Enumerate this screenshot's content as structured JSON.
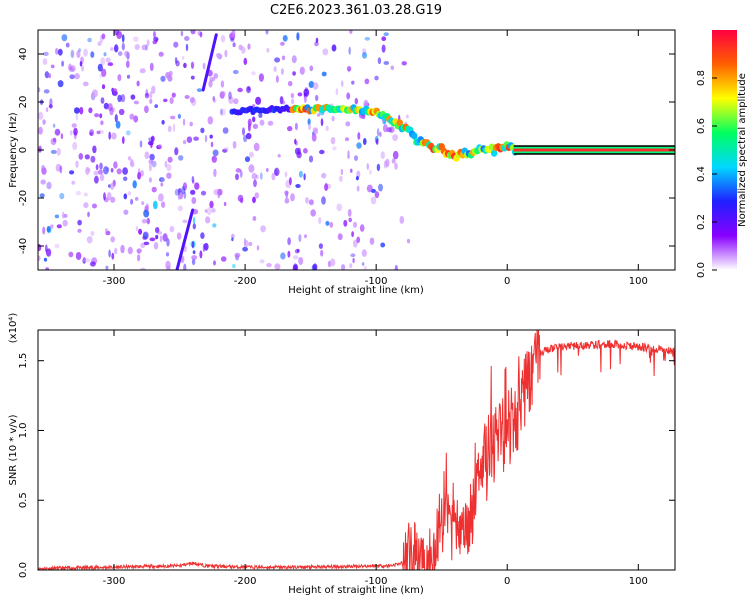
{
  "title": "C2E6.2023.361.03.28.G19",
  "colors": {
    "snr_line": "#ee3030",
    "colormap": [
      "#ffffff",
      "#8800ff",
      "#2020ff",
      "#00d8ff",
      "#00ff60",
      "#ffff00",
      "#ff6000",
      "#ff0040"
    ],
    "freq_core": "#ff2a2a"
  },
  "chart_data": [
    {
      "id": "spectrogram",
      "type": "heatmap",
      "xlabel": "Height of straight line (km)",
      "ylabel": "Frequency (Hz)",
      "xlim": [
        -358,
        128
      ],
      "ylim": [
        -50,
        50
      ],
      "xticks": [
        -300,
        -200,
        -100,
        0,
        100
      ],
      "xtick_labels": [
        "-300",
        "-200",
        "-100",
        "0",
        "100"
      ],
      "yticks": [
        -40,
        -20,
        0,
        20,
        40
      ],
      "ytick_labels": [
        "-40",
        "-20",
        "0",
        "20",
        "40"
      ],
      "colorbar": {
        "label": "Normalized spectral amplitude",
        "range": [
          0,
          1
        ],
        "ticks": [
          0.0,
          0.2,
          0.4,
          0.6,
          0.8
        ],
        "tick_labels": [
          "0.0",
          "0.2",
          "0.4",
          "0.6",
          "0.8"
        ]
      },
      "ridge": {
        "x": [
          -210,
          -180,
          -160,
          -140,
          -120,
          -100,
          -90,
          -80,
          -70,
          -60,
          -50,
          -40,
          -30,
          -20,
          -10,
          0,
          10,
          128
        ],
        "y": [
          16,
          17,
          17,
          17,
          17,
          16,
          13,
          10,
          5,
          2,
          0,
          -3,
          -1,
          0,
          0,
          1,
          0,
          0
        ]
      },
      "diagonal_streaks": [
        {
          "x": [
            -252,
            -240
          ],
          "y": [
            -50,
            -25
          ]
        },
        {
          "x": [
            -232,
            -222
          ],
          "y": [
            25,
            48
          ]
        }
      ]
    },
    {
      "id": "snr",
      "type": "line",
      "xlabel": "Height of straight line (km)",
      "ylabel": "SNR (10 * v/v)",
      "multiplier": "(x10⁴)",
      "xlim": [
        -358,
        128
      ],
      "ylim": [
        0,
        1.72
      ],
      "xticks": [
        -300,
        -200,
        -100,
        0,
        100
      ],
      "xtick_labels": [
        "-300",
        "-200",
        "-100",
        "0",
        "100"
      ],
      "yticks": [
        0,
        0.5,
        1.0,
        1.5
      ],
      "ytick_labels": [
        "0.0",
        "0.5",
        "1.0",
        "1.5"
      ],
      "series": [
        {
          "x": [
            -358,
            -300,
            -250,
            -240,
            -230,
            -200,
            -150,
            -100,
            -90,
            -75,
            -60,
            -55,
            -50,
            -45,
            -40,
            -35,
            -30,
            -25,
            -20,
            -15,
            -10,
            -5,
            0,
            5,
            10,
            15,
            20,
            25,
            30,
            40,
            60,
            80,
            100,
            120,
            128
          ],
          "y": [
            0.01,
            0.02,
            0.03,
            0.05,
            0.03,
            0.02,
            0.02,
            0.03,
            0.03,
            0.06,
            0.1,
            0.2,
            0.4,
            0.5,
            0.4,
            0.2,
            0.3,
            0.55,
            0.7,
            0.85,
            0.9,
            1.0,
            1.1,
            1.05,
            1.2,
            1.35,
            1.5,
            1.55,
            1.58,
            1.6,
            1.61,
            1.62,
            1.6,
            1.58,
            1.57
          ]
        }
      ]
    }
  ]
}
